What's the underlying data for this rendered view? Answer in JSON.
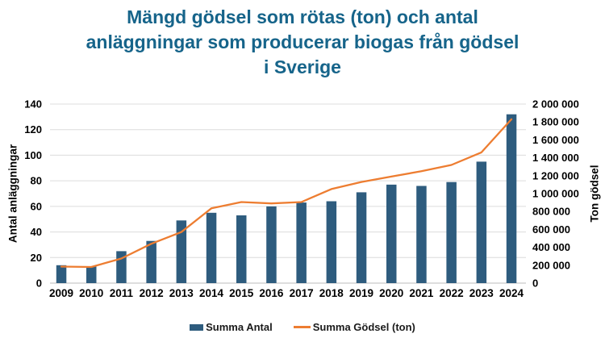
{
  "title": {
    "text": "Mängd gödsel som rötas (ton) och antal anläggningar som producerar biogas från gödsel i Sverige",
    "lines": [
      "Mängd gödsel som rötas (ton) och antal",
      "anläggningar som producerar biogas från gödsel",
      "i Sverige"
    ],
    "color": "#16648a"
  },
  "legend": {
    "items": [
      {
        "label": "Summa Antal",
        "swatch": "bar-swatch",
        "color": "#2e5c7e"
      },
      {
        "label": "Summa Gödsel (ton)",
        "swatch": "line-swatch",
        "color": "#ed7d31"
      }
    ]
  },
  "chart_data": {
    "type": "bar",
    "subtype": "combo bar+line, dual axis",
    "categories": [
      "2009",
      "2010",
      "2011",
      "2012",
      "2013",
      "2014",
      "2015",
      "2016",
      "2017",
      "2018",
      "2019",
      "2020",
      "2021",
      "2022",
      "2023",
      "2024"
    ],
    "series": [
      {
        "name": "Summa Antal",
        "type": "bar",
        "axis": "left",
        "color": "#2e5c7e",
        "values": [
          14,
          13,
          25,
          33,
          49,
          55,
          53,
          60,
          63,
          64,
          71,
          77,
          76,
          79,
          95,
          132
        ]
      },
      {
        "name": "Summa Gödsel (ton)",
        "type": "line",
        "axis": "right",
        "color": "#ed7d31",
        "values": [
          185000,
          180000,
          275000,
          440000,
          570000,
          835000,
          905000,
          890000,
          905000,
          1050000,
          1130000,
          1190000,
          1250000,
          1320000,
          1460000,
          1830000
        ]
      }
    ],
    "axes": {
      "left": {
        "label": "Antal anläggningar",
        "min": 0,
        "max": 140,
        "step": 20,
        "tick_labels": [
          "0",
          "20",
          "40",
          "60",
          "80",
          "100",
          "120",
          "140"
        ]
      },
      "right": {
        "label": "Ton gödsel",
        "min": 0,
        "max": 2000000,
        "step": 200000,
        "tick_labels": [
          "0",
          "200 000",
          "400 000",
          "600 000",
          "800 000",
          "1 000 000",
          "1 200 000",
          "1 400 000",
          "1 600 000",
          "1 800 000",
          "2 000 000"
        ]
      }
    },
    "grid": true,
    "legend_position": "bottom",
    "gridline_color": "#dcdcdc",
    "axis_line_color": "#c9c9c9"
  }
}
